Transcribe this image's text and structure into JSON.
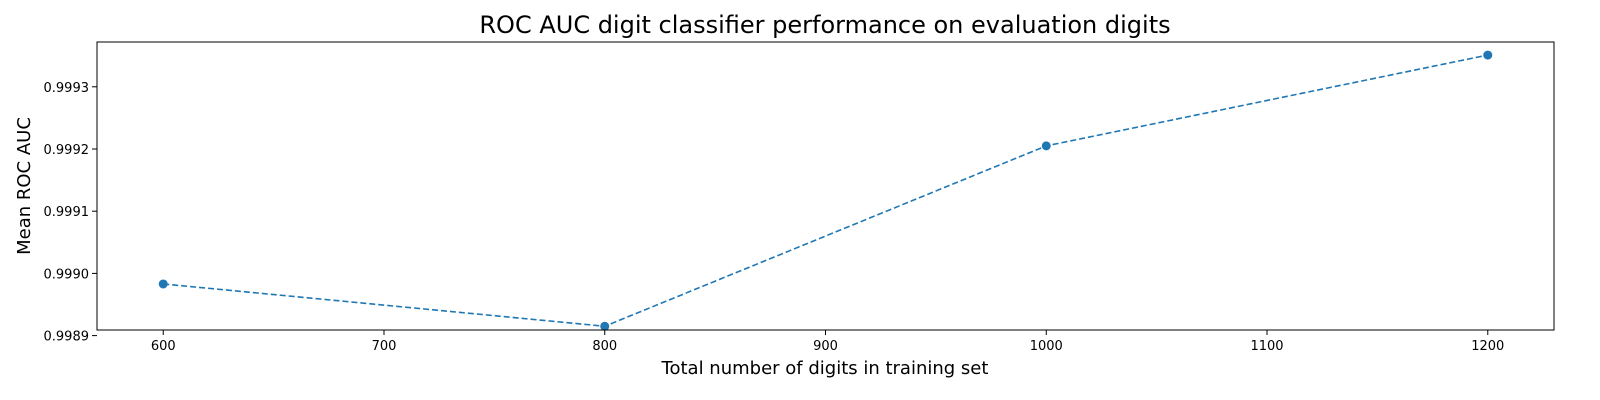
{
  "chart_data": {
    "type": "line",
    "title": "ROC AUC digit classifier performance on evaluation digits",
    "xlabel": "Total number of digits in training set",
    "ylabel": "Mean ROC AUC",
    "x": [
      600,
      800,
      1000,
      1200
    ],
    "series": [
      {
        "values": [
          0.998983,
          0.998915,
          0.999205,
          0.999351
        ],
        "color": "#1f77b4",
        "line_style": "dashed",
        "marker": "circle"
      }
    ],
    "xlim": [
      570,
      1230
    ],
    "ylim": [
      0.998909,
      0.999372
    ],
    "x_ticks": [
      600,
      700,
      800,
      900,
      1000,
      1100,
      1200
    ],
    "x_tick_labels": [
      "600",
      "700",
      "800",
      "900",
      "1000",
      "1100",
      "1200"
    ],
    "y_ticks": [
      0.9989,
      0.999,
      0.9991,
      0.9992,
      0.9993
    ],
    "y_tick_labels": [
      "0.9989",
      "0.9990",
      "0.9991",
      "0.9992",
      "0.9993"
    ],
    "grid": false,
    "legend": "none"
  }
}
